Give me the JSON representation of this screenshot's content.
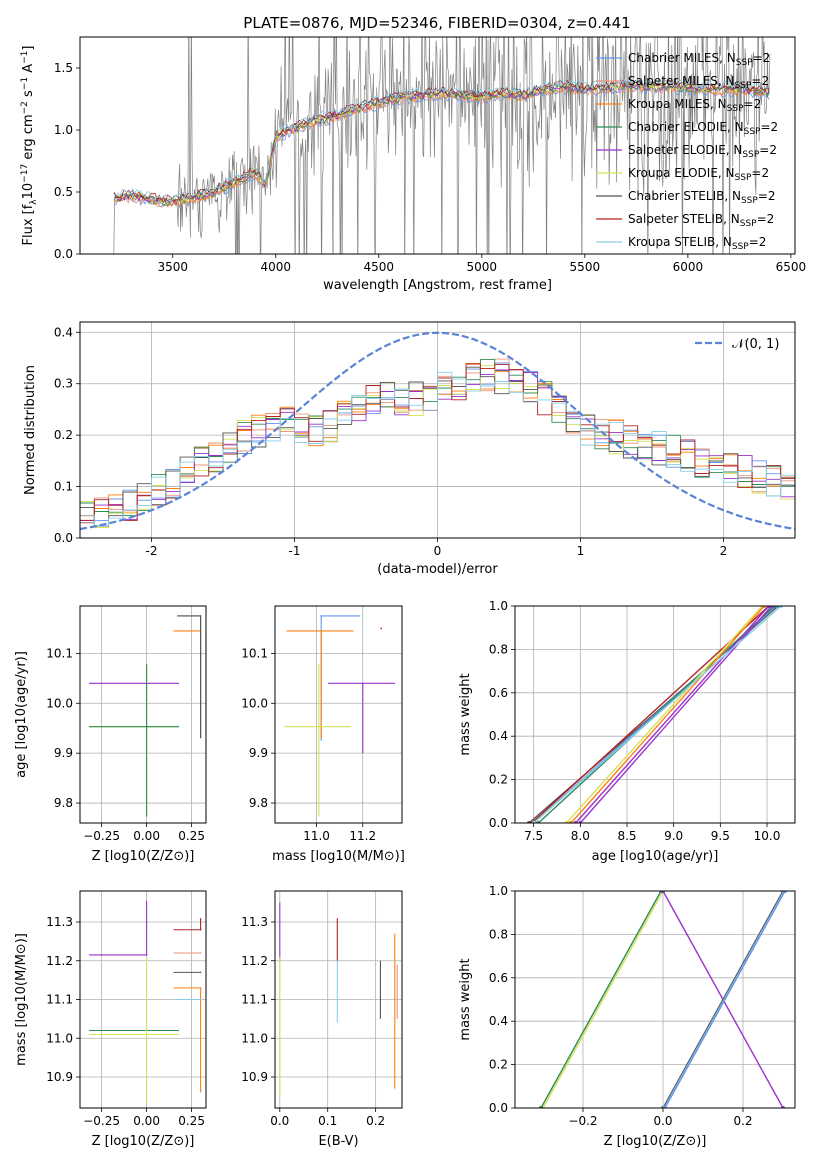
{
  "figure_title": "PLATE=0876, MJD=52346, FIBERID=0304, z=0.441",
  "legend_entries": [
    {
      "label": "Chabrier MILES, N",
      "sub": "SSP",
      "suffix": "=2",
      "color": "#6495ed"
    },
    {
      "label": "Salpeter MILES, N",
      "sub": "SSP",
      "suffix": "=2",
      "color": "#e9967a"
    },
    {
      "label": "Kroupa MILES, N",
      "sub": "SSP",
      "suffix": "=2",
      "color": "#ff7f0e"
    },
    {
      "label": "Chabrier ELODIE, N",
      "sub": "SSP",
      "suffix": "=2",
      "color": "#2e8b57"
    },
    {
      "label": "Salpeter ELODIE, N",
      "sub": "SSP",
      "suffix": "=2",
      "color": "#9932cc"
    },
    {
      "label": "Kroupa ELODIE, N",
      "sub": "SSP",
      "suffix": "=2",
      "color": "#d4e157"
    },
    {
      "label": "Chabrier STELIB, N",
      "sub": "SSP",
      "suffix": "=2",
      "color": "#555555"
    },
    {
      "label": "Salpeter STELIB, N",
      "sub": "SSP",
      "suffix": "=2",
      "color": "#b22222"
    },
    {
      "label": "Kroupa STELIB, N",
      "sub": "SSP",
      "suffix": "=2",
      "color": "#87ceeb"
    }
  ],
  "chart_data": [
    {
      "type": "line",
      "panel": "spectrum",
      "xlabel": "wavelength [Angstrom, rest frame]",
      "ylabel": "Flux [f_λ 10^-17 erg cm^-2 s^-1 A^-1]",
      "xlim": [
        3050,
        6520
      ],
      "ylim": [
        0,
        1.75
      ],
      "xticks": [
        3500,
        4000,
        4500,
        5000,
        5500,
        6000,
        6500
      ],
      "yticks": [
        0.0,
        0.5,
        1.0,
        1.5
      ],
      "data_color": "#808080",
      "data_x_range": [
        3210,
        6400
      ],
      "model_shape": {
        "x": [
          3210,
          3300,
          3400,
          3500,
          3600,
          3700,
          3800,
          3900,
          3950,
          4000,
          4100,
          4200,
          4300,
          4400,
          4500,
          4600,
          4700,
          4800,
          4900,
          5000,
          5100,
          5200,
          5300,
          5400,
          5500,
          5600,
          5700,
          5800,
          5900,
          6000,
          6100,
          6200,
          6300,
          6400
        ],
        "y": [
          0.45,
          0.47,
          0.44,
          0.42,
          0.46,
          0.5,
          0.58,
          0.66,
          0.55,
          0.95,
          1.02,
          1.08,
          1.12,
          1.18,
          1.22,
          1.26,
          1.28,
          1.3,
          1.28,
          1.27,
          1.3,
          1.28,
          1.33,
          1.35,
          1.33,
          1.34,
          1.36,
          1.35,
          1.35,
          1.34,
          1.33,
          1.33,
          1.32,
          1.3
        ]
      }
    },
    {
      "type": "line",
      "panel": "residuals",
      "xlabel": "(data-model)/error",
      "ylabel": "Normed distribution",
      "xlim": [
        -2.5,
        2.5
      ],
      "ylim": [
        0,
        0.42
      ],
      "xticks": [
        -2,
        -1,
        0,
        1,
        2
      ],
      "yticks": [
        0.0,
        0.1,
        0.2,
        0.3,
        0.4
      ],
      "gaussian_label": "𝒩(0, 1)",
      "gaussian_color": "#5b84d6",
      "histogram_envelope": {
        "x": [
          -2.5,
          -2.0,
          -1.5,
          -1.2,
          -1.0,
          -0.8,
          -0.6,
          -0.4,
          -0.2,
          0.0,
          0.2,
          0.4,
          0.6,
          0.8,
          1.0,
          1.2,
          1.5,
          2.0,
          2.5
        ],
        "y": [
          0.04,
          0.08,
          0.17,
          0.22,
          0.22,
          0.2,
          0.26,
          0.27,
          0.27,
          0.28,
          0.31,
          0.32,
          0.3,
          0.26,
          0.22,
          0.2,
          0.18,
          0.14,
          0.1
        ]
      }
    },
    {
      "type": "scatter",
      "panel": "age-vs-Z",
      "xlabel": "Z [log10(Z/Z⊙)]",
      "ylabel": "age  [log10(age/yr)]",
      "xlim": [
        -0.37,
        0.33
      ],
      "ylim": [
        9.76,
        10.195
      ],
      "xticks": [
        -0.25,
        0.0,
        0.25
      ],
      "xticklabels": [
        "−0.25",
        "0.00",
        "0.25"
      ],
      "yticks": [
        9.8,
        9.9,
        10.0,
        10.1
      ],
      "points": [
        {
          "x": 0.3,
          "y": 10.175,
          "xerr": [
            0.13,
            0.0
          ],
          "yerr": [
            0.245,
            0.0
          ],
          "color": "#6495ed"
        },
        {
          "x": 0.3,
          "y": 10.145,
          "xerr": [
            0.15,
            0.0
          ],
          "yerr": [
            0.215,
            0.0
          ],
          "color": "#ff7f0e"
        },
        {
          "x": 0.3,
          "y": 10.175,
          "xerr": [
            0.13,
            0.0
          ],
          "yerr": [
            0.245,
            0.0
          ],
          "color": "#555555"
        },
        {
          "x": 0.0,
          "y": 10.04,
          "xerr": [
            0.32,
            0.18
          ],
          "yerr": [
            0.0,
            0.0
          ],
          "color": "#9932cc"
        },
        {
          "x": 0.0,
          "y": 9.953,
          "xerr": [
            0.32,
            0.18
          ],
          "yerr": [
            0.18,
            0.125
          ],
          "color": "#d4e157"
        },
        {
          "x": 0.0,
          "y": 9.953,
          "xerr": [
            0.32,
            0.18
          ],
          "yerr": [
            0.18,
            0.125
          ],
          "color": "#2e8b57"
        }
      ]
    },
    {
      "type": "scatter",
      "panel": "age-vs-mass",
      "xlabel": "mass [log10(M/M⊙)]",
      "ylabel": "",
      "xlim": [
        10.82,
        11.37
      ],
      "ylim": [
        9.76,
        10.195
      ],
      "xticks": [
        11.0,
        11.2
      ],
      "xticklabels": [
        "11.0",
        "11.2"
      ],
      "yticks": [
        9.8,
        9.9,
        10.0,
        10.1
      ],
      "points": [
        {
          "x": 11.02,
          "y": 10.175,
          "xerr": [
            0.0,
            0.17
          ],
          "yerr": [
            0.25,
            0.0
          ],
          "color": "#6495ed"
        },
        {
          "x": 11.02,
          "y": 10.145,
          "xerr": [
            0.15,
            0.14
          ],
          "yerr": [
            0.215,
            0.0
          ],
          "color": "#ff7f0e"
        },
        {
          "x": 11.01,
          "y": 9.953,
          "xerr": [
            0.15,
            0.14
          ],
          "yerr": [
            0.18,
            0.125
          ],
          "color": "#d4e157"
        },
        {
          "x": 11.2,
          "y": 10.04,
          "xerr": [
            0.15,
            0.14
          ],
          "yerr": [
            0.14,
            0.0
          ],
          "color": "#9932cc"
        },
        {
          "x": 11.28,
          "y": 10.15,
          "xerr": [
            0.0,
            0.0
          ],
          "yerr": [
            0.0,
            0.0
          ],
          "color": "#b22222"
        }
      ]
    },
    {
      "type": "line",
      "panel": "mass-weight-vs-age",
      "xlabel": "age  [log10(age/yr)]",
      "ylabel": "mass weight",
      "xlim": [
        7.3,
        10.3
      ],
      "ylim": [
        0,
        1
      ],
      "xticks": [
        7.5,
        8.0,
        8.5,
        9.0,
        9.5,
        10.0
      ],
      "xticklabels": [
        "7.5",
        "8.0",
        "8.5",
        "9.0",
        "9.5",
        "10.0"
      ],
      "yticks": [
        0.0,
        0.2,
        0.4,
        0.6,
        0.8,
        1.0
      ],
      "lines": [
        {
          "x": [
            7.45,
            10.12
          ],
          "y": [
            0,
            1
          ],
          "color": "#555555"
        },
        {
          "x": [
            7.5,
            10.1
          ],
          "y": [
            0,
            1
          ],
          "color": "#6495ed"
        },
        {
          "x": [
            7.55,
            10.08
          ],
          "y": [
            0,
            1
          ],
          "color": "#2e8b57"
        },
        {
          "x": [
            7.48,
            10.02
          ],
          "y": [
            0,
            1
          ],
          "color": "#b22222"
        },
        {
          "x": [
            7.85,
            9.95
          ],
          "y": [
            0,
            1
          ],
          "color": "#d4e157"
        },
        {
          "x": [
            7.9,
            9.97
          ],
          "y": [
            0,
            1
          ],
          "color": "#ff7f0e"
        },
        {
          "x": [
            7.95,
            10.02
          ],
          "y": [
            0,
            1
          ],
          "color": "#9932cc"
        },
        {
          "x": [
            8.0,
            10.05
          ],
          "y": [
            0,
            1
          ],
          "color": "#9932cc"
        },
        {
          "x": [
            7.5,
            10.15
          ],
          "y": [
            0,
            1
          ],
          "color": "#87ceeb"
        }
      ]
    },
    {
      "type": "scatter",
      "panel": "mass-vs-Z",
      "xlabel": "Z [log10(Z/Z⊙)]",
      "ylabel": "mass [log10(M/M⊙)]",
      "xlim": [
        -0.37,
        0.33
      ],
      "ylim": [
        10.82,
        11.38
      ],
      "xticks": [
        -0.25,
        0.0,
        0.25
      ],
      "xticklabels": [
        "−0.25",
        "0.00",
        "0.25"
      ],
      "yticks": [
        10.9,
        11.0,
        11.1,
        11.2,
        11.3
      ],
      "points": [
        {
          "x": 0.3,
          "y": 11.28,
          "xerr": [
            0.15,
            0.0
          ],
          "yerr": [
            0.0,
            0.03
          ],
          "color": "#b22222"
        },
        {
          "x": 0.3,
          "y": 11.22,
          "xerr": [
            0.15,
            0.0
          ],
          "yerr": [
            0.0,
            0.0
          ],
          "color": "#e9967a"
        },
        {
          "x": 0.3,
          "y": 11.17,
          "xerr": [
            0.15,
            0.0
          ],
          "yerr": [
            0.0,
            0.0
          ],
          "color": "#555555"
        },
        {
          "x": 0.3,
          "y": 11.13,
          "xerr": [
            0.15,
            0.0
          ],
          "yerr": [
            0.27,
            0.0
          ],
          "color": "#ff7f0e"
        },
        {
          "x": 0.3,
          "y": 11.1,
          "xerr": [
            0.15,
            0.0
          ],
          "yerr": [
            0.0,
            0.0
          ],
          "color": "#87ceeb"
        },
        {
          "x": 0.0,
          "y": 11.215,
          "xerr": [
            0.32,
            0.0
          ],
          "yerr": [
            0.0,
            0.14
          ],
          "color": "#9932cc"
        },
        {
          "x": 0.0,
          "y": 11.02,
          "xerr": [
            0.32,
            0.18
          ],
          "yerr": [
            0.0,
            0.0
          ],
          "color": "#2e8b57"
        },
        {
          "x": 0.0,
          "y": 11.01,
          "xerr": [
            0.32,
            0.18
          ],
          "yerr": [
            0.18,
            0.2
          ],
          "color": "#d4e157"
        }
      ]
    },
    {
      "type": "scatter",
      "panel": "mass-vs-EBV",
      "xlabel": "E(B-V)",
      "ylabel": "",
      "xlim": [
        -0.01,
        0.255
      ],
      "ylim": [
        10.82,
        11.38
      ],
      "xticks": [
        0.0,
        0.1,
        0.2
      ],
      "xticklabels": [
        "0.0",
        "0.1",
        "0.2"
      ],
      "yticks": [
        10.9,
        11.0,
        11.1,
        11.2,
        11.3
      ],
      "segments": [
        {
          "x": 0.0,
          "y0": 11.2,
          "y1": 11.35,
          "color": "#9932cc"
        },
        {
          "x": 0.0,
          "y0": 10.85,
          "y1": 11.21,
          "color": "#d4e157"
        },
        {
          "x": 0.12,
          "y0": 11.2,
          "y1": 11.31,
          "color": "#b22222"
        },
        {
          "x": 0.12,
          "y0": 11.04,
          "y1": 11.2,
          "color": "#87ceeb"
        },
        {
          "x": 0.21,
          "y0": 11.05,
          "y1": 11.2,
          "color": "#555555"
        },
        {
          "x": 0.24,
          "y0": 10.87,
          "y1": 11.27,
          "color": "#ff7f0e"
        },
        {
          "x": 0.245,
          "y0": 11.05,
          "y1": 11.19,
          "color": "#e9967a"
        }
      ]
    },
    {
      "type": "line",
      "panel": "mass-weight-vs-Z",
      "xlabel": "Z [log10(Z/Z⊙)]",
      "ylabel": "mass weight",
      "xlim": [
        -0.37,
        0.33
      ],
      "ylim": [
        0,
        1
      ],
      "xticks": [
        -0.2,
        0.0,
        0.2
      ],
      "xticklabels": [
        "−0.2",
        "0.0",
        "0.2"
      ],
      "yticks": [
        0.0,
        0.2,
        0.4,
        0.6,
        0.8,
        1.0
      ],
      "lines": [
        {
          "x": [
            -0.3,
            0.0
          ],
          "y": [
            0,
            1
          ],
          "color": "#d4e157"
        },
        {
          "x": [
            -0.305,
            -0.005
          ],
          "y": [
            0,
            1
          ],
          "color": "#2e8b57"
        },
        {
          "x": [
            0.0,
            0.3
          ],
          "y": [
            1,
            0
          ],
          "color": "#9932cc"
        },
        {
          "x": [
            0.0,
            0.3
          ],
          "y": [
            0,
            1
          ],
          "color": "#555555"
        },
        {
          "x": [
            0.003,
            0.303
          ],
          "y": [
            0,
            1
          ],
          "color": "#87ceeb"
        },
        {
          "x": [
            0.005,
            0.305
          ],
          "y": [
            0,
            1
          ],
          "color": "#6495ed"
        }
      ]
    }
  ]
}
